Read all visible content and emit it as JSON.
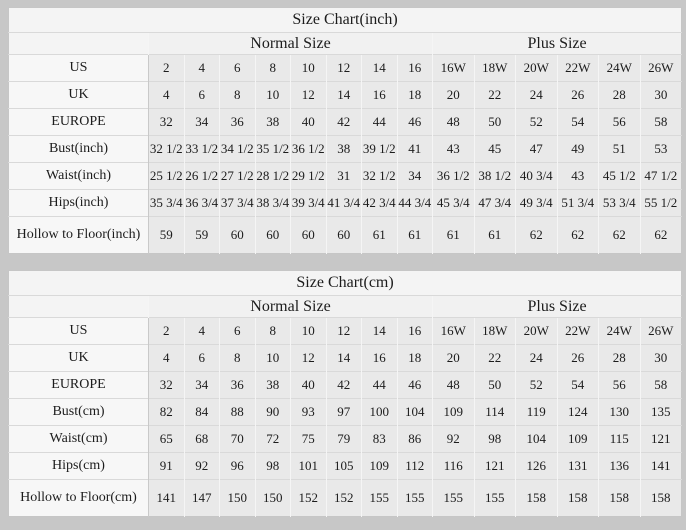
{
  "colors": {
    "page_bg": "#c7c7c7",
    "title_bg": "#f4f4f4",
    "header_bg": "#f1f1f1",
    "label_bg": "#f7f7f7",
    "cell_bg": "#e9e9e9",
    "border_light": "#f5f5f5",
    "border_dark": "#d9d9d9",
    "text": "#1c1c1c"
  },
  "chart_data": [
    {
      "type": "table",
      "title": "Size Chart(inch)",
      "groups": [
        {
          "label": "Normal Size",
          "span": 8
        },
        {
          "label": "Plus Size",
          "span": 6
        }
      ],
      "rows": [
        {
          "label": "US",
          "values": [
            "2",
            "4",
            "6",
            "8",
            "10",
            "12",
            "14",
            "16",
            "16W",
            "18W",
            "20W",
            "22W",
            "24W",
            "26W"
          ]
        },
        {
          "label": "UK",
          "values": [
            "4",
            "6",
            "8",
            "10",
            "12",
            "14",
            "16",
            "18",
            "20",
            "22",
            "24",
            "26",
            "28",
            "30"
          ]
        },
        {
          "label": "EUROPE",
          "values": [
            "32",
            "34",
            "36",
            "38",
            "40",
            "42",
            "44",
            "46",
            "48",
            "50",
            "52",
            "54",
            "56",
            "58"
          ]
        },
        {
          "label": "Bust(inch)",
          "values": [
            "32 1/2",
            "33 1/2",
            "34 1/2",
            "35 1/2",
            "36 1/2",
            "38",
            "39 1/2",
            "41",
            "43",
            "45",
            "47",
            "49",
            "51",
            "53"
          ]
        },
        {
          "label": "Waist(inch)",
          "values": [
            "25 1/2",
            "26 1/2",
            "27 1/2",
            "28 1/2",
            "29 1/2",
            "31",
            "32 1/2",
            "34",
            "36 1/2",
            "38 1/2",
            "40 3/4",
            "43",
            "45 1/2",
            "47 1/2"
          ]
        },
        {
          "label": "Hips(inch)",
          "values": [
            "35 3/4",
            "36 3/4",
            "37 3/4",
            "38 3/4",
            "39 3/4",
            "41 3/4",
            "42 3/4",
            "44 3/4",
            "45 3/4",
            "47 3/4",
            "49 3/4",
            "51 3/4",
            "53 3/4",
            "55 1/2"
          ]
        },
        {
          "label": "Hollow to Floor(inch)",
          "values": [
            "59",
            "59",
            "60",
            "60",
            "60",
            "60",
            "61",
            "61",
            "61",
            "61",
            "62",
            "62",
            "62",
            "62"
          ]
        }
      ]
    },
    {
      "type": "table",
      "title": "Size Chart(cm)",
      "groups": [
        {
          "label": "Normal Size",
          "span": 8
        },
        {
          "label": "Plus Size",
          "span": 6
        }
      ],
      "rows": [
        {
          "label": "US",
          "values": [
            "2",
            "4",
            "6",
            "8",
            "10",
            "12",
            "14",
            "16",
            "16W",
            "18W",
            "20W",
            "22W",
            "24W",
            "26W"
          ]
        },
        {
          "label": "UK",
          "values": [
            "4",
            "6",
            "8",
            "10",
            "12",
            "14",
            "16",
            "18",
            "20",
            "22",
            "24",
            "26",
            "28",
            "30"
          ]
        },
        {
          "label": "EUROPE",
          "values": [
            "32",
            "34",
            "36",
            "38",
            "40",
            "42",
            "44",
            "46",
            "48",
            "50",
            "52",
            "54",
            "56",
            "58"
          ]
        },
        {
          "label": "Bust(cm)",
          "values": [
            "82",
            "84",
            "88",
            "90",
            "93",
            "97",
            "100",
            "104",
            "109",
            "114",
            "119",
            "124",
            "130",
            "135"
          ]
        },
        {
          "label": "Waist(cm)",
          "values": [
            "65",
            "68",
            "70",
            "72",
            "75",
            "79",
            "83",
            "86",
            "92",
            "98",
            "104",
            "109",
            "115",
            "121"
          ]
        },
        {
          "label": "Hips(cm)",
          "values": [
            "91",
            "92",
            "96",
            "98",
            "101",
            "105",
            "109",
            "112",
            "116",
            "121",
            "126",
            "131",
            "136",
            "141"
          ]
        },
        {
          "label": "Hollow to Floor(cm)",
          "values": [
            "141",
            "147",
            "150",
            "150",
            "152",
            "152",
            "155",
            "155",
            "155",
            "155",
            "158",
            "158",
            "158",
            "158"
          ]
        }
      ]
    }
  ]
}
